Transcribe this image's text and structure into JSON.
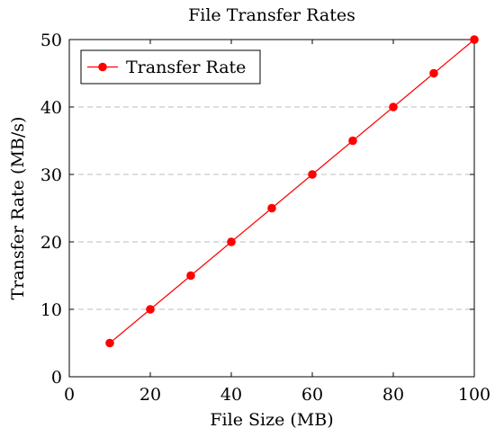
{
  "chart_data": {
    "type": "line",
    "title": "File Transfer Rates",
    "xlabel": "File Size (MB)",
    "ylabel": "Transfer Rate (MB/s)",
    "xlim": [
      0,
      100
    ],
    "ylim": [
      0,
      50
    ],
    "x_ticks": [
      0,
      20,
      40,
      60,
      80,
      100
    ],
    "y_ticks": [
      0,
      10,
      20,
      30,
      40,
      50
    ],
    "grid": "horizontal dashed",
    "legend_position": "top-left",
    "series": [
      {
        "name": "Transfer Rate",
        "color": "#ff0000",
        "marker": "circle",
        "x": [
          10,
          20,
          30,
          40,
          50,
          60,
          70,
          80,
          90,
          100
        ],
        "y": [
          5,
          10,
          15,
          20,
          25,
          30,
          35,
          40,
          45,
          50
        ]
      }
    ]
  }
}
